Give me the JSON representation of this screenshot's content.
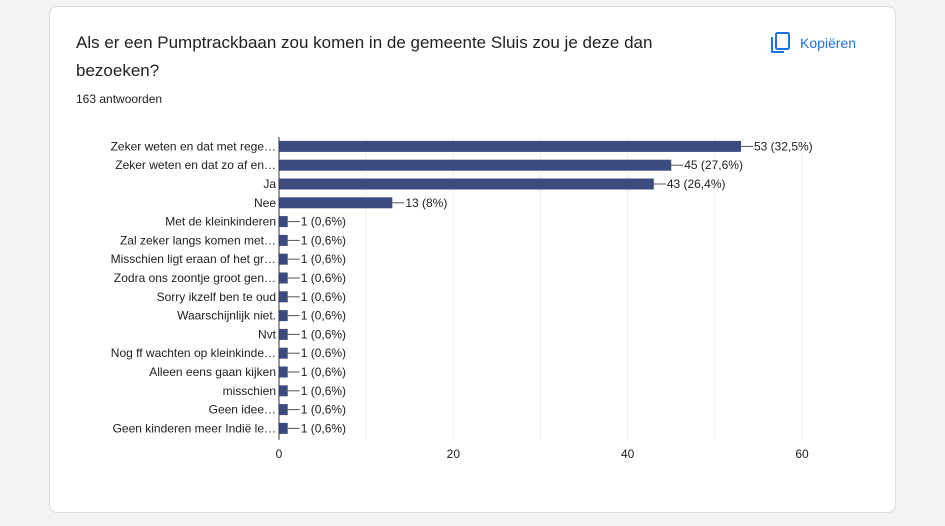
{
  "card": {
    "question": "Als er een Pumptrackbaan zou komen in de gemeente Sluis zou je deze dan bezoeken?",
    "responses": "163 antwoorden",
    "copy_label": "Kopiëren",
    "copy_icon": "copy-icon",
    "accent": "#1a73e8"
  },
  "chart_data": {
    "type": "bar",
    "orientation": "horizontal",
    "categories": [
      "Zeker weten en dat met rege…",
      "Zeker weten en dat zo af en…",
      "Ja",
      "Nee",
      "Met de kleinkinderen",
      "Zal zeker langs komen met…",
      "Misschien ligt eraan of het gr…",
      "Zodra ons zoontje groot gen…",
      "Sorry ikzelf ben te oud",
      "Waarschijnlijk niet.",
      "Nvt",
      "Nog ff wachten op kleinkinde…",
      "Alleen eens gaan kijken",
      "misschien",
      "Geen idee…",
      "Geen kinderen meer Indië le…"
    ],
    "values": [
      53,
      45,
      43,
      13,
      1,
      1,
      1,
      1,
      1,
      1,
      1,
      1,
      1,
      1,
      1,
      1
    ],
    "data_labels": [
      "53 (32,5%)",
      "45 (27,6%)",
      "43 (26,4%)",
      "13 (8%)",
      "1 (0,6%)",
      "1 (0,6%)",
      "1 (0,6%)",
      "1 (0,6%)",
      "1 (0,6%)",
      "1 (0,6%)",
      "1 (0,6%)",
      "1 (0,6%)",
      "1 (0,6%)",
      "1 (0,6%)",
      "1 (0,6%)",
      "1 (0,6%)"
    ],
    "xlim": [
      0,
      60
    ],
    "xticks": [
      0,
      20,
      40,
      60
    ],
    "grid": true,
    "bar_color": "#3b4b80",
    "title": "",
    "xlabel": "",
    "ylabel": ""
  }
}
